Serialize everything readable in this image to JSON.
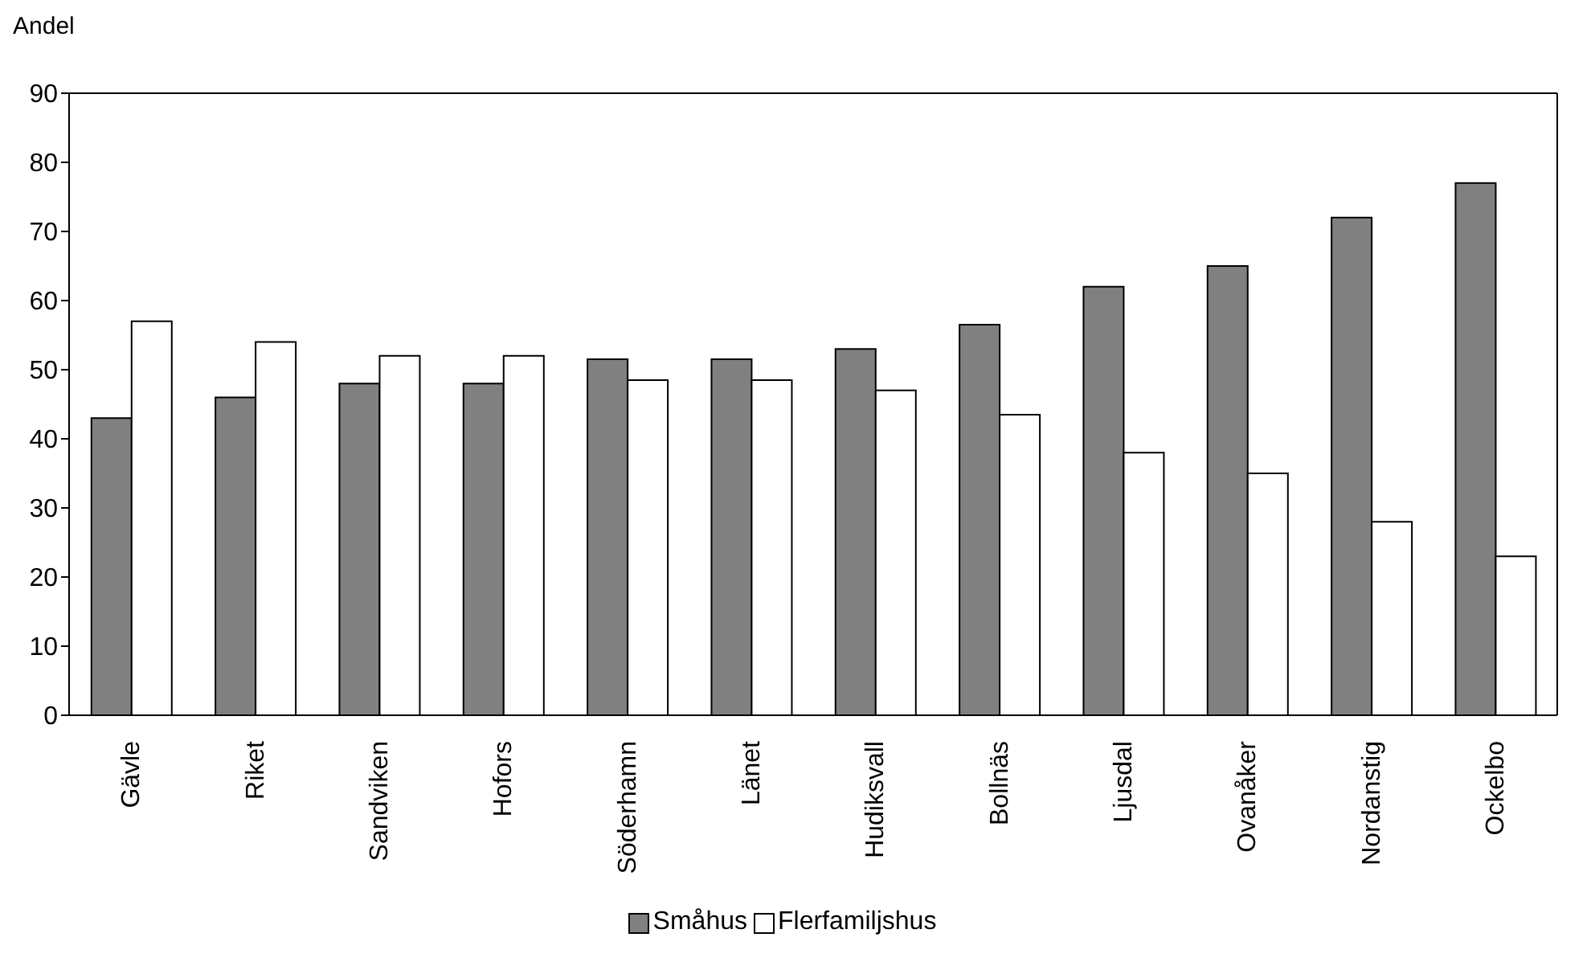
{
  "chart_data": {
    "type": "bar",
    "ylabel": "Andel",
    "categories": [
      "Gävle",
      "Riket",
      "Sandviken",
      "Hofors",
      "Söderhamn",
      "Länet",
      "Hudiksvall",
      "Bollnäs",
      "Ljusdal",
      "Ovanåker",
      "Nordanstig",
      "Ockelbo"
    ],
    "series": [
      {
        "name": "Småhus",
        "color": "#808080",
        "values": [
          43,
          46,
          48,
          48,
          51.5,
          51.5,
          53,
          56.5,
          62,
          65,
          72,
          77
        ]
      },
      {
        "name": "Flerfamiljshus",
        "color": "#ffffff",
        "values": [
          57,
          54,
          52,
          52,
          48.5,
          48.5,
          47,
          43.5,
          38,
          35,
          28,
          23
        ]
      }
    ],
    "ylim": [
      0,
      90
    ],
    "yticks": [
      0,
      10,
      20,
      30,
      40,
      50,
      60,
      70,
      80,
      90
    ],
    "grid": false,
    "legend": "bottom"
  }
}
